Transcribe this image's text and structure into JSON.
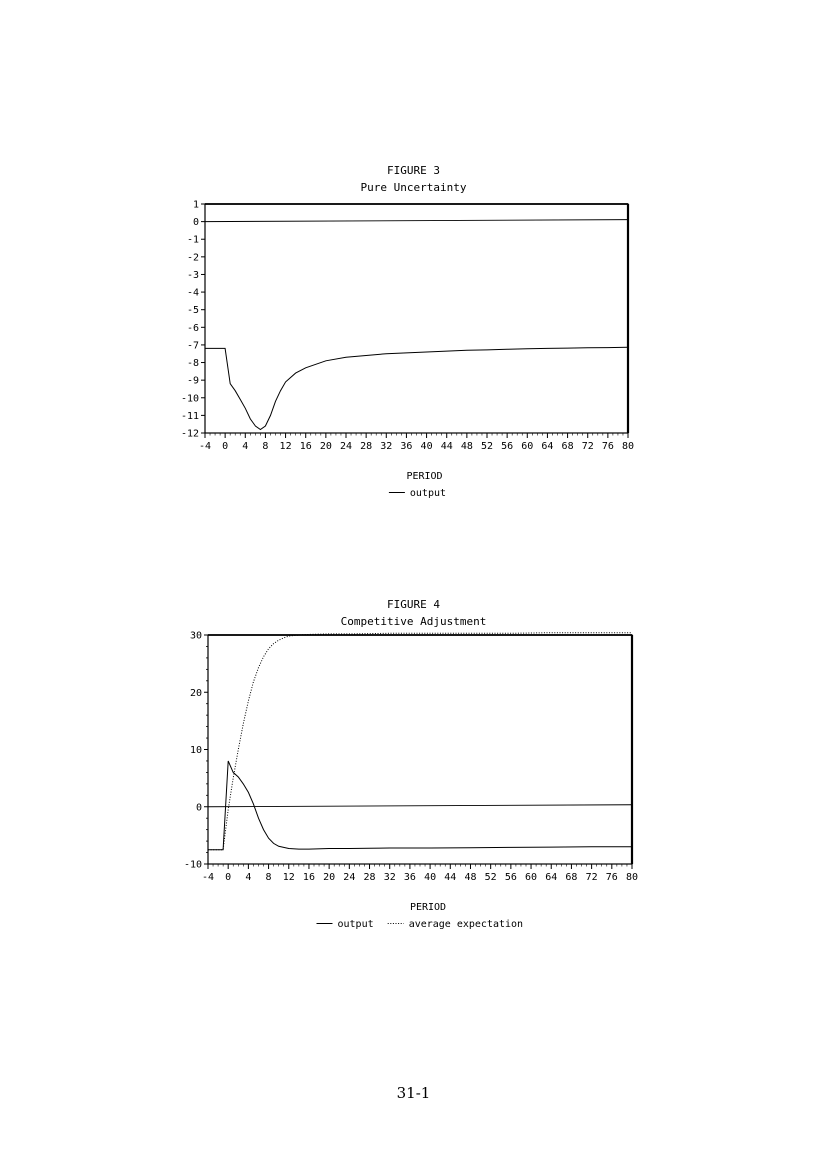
{
  "page": {
    "page_number": "31-1"
  },
  "chart_data": [
    {
      "type": "line",
      "figure_label": "FIGURE 3",
      "title": "Pure Uncertainty",
      "xlabel": "PERIOD",
      "ylabel": "",
      "xlim": [
        -4,
        80
      ],
      "ylim": [
        -12,
        1
      ],
      "x_ticks": [
        -4,
        0,
        4,
        8,
        12,
        16,
        20,
        24,
        28,
        32,
        36,
        40,
        44,
        48,
        52,
        56,
        60,
        64,
        68,
        72,
        76,
        80
      ],
      "y_ticks": [
        1,
        0,
        -1,
        -2,
        -3,
        -4,
        -5,
        -6,
        -7,
        -8,
        -9,
        -10,
        -11,
        -12
      ],
      "grid": false,
      "legend_position": "bottom-center",
      "reference_line": {
        "y": 0
      },
      "series": [
        {
          "name": "output",
          "style": "solid",
          "x": [
            -4,
            -3,
            -2,
            -1,
            0,
            1,
            2,
            3,
            4,
            5,
            6,
            7,
            8,
            9,
            10,
            11,
            12,
            14,
            16,
            18,
            20,
            24,
            28,
            32,
            36,
            40,
            44,
            48,
            52,
            56,
            60,
            64,
            68,
            72,
            76,
            80
          ],
          "y": [
            -7.2,
            -7.2,
            -7.2,
            -7.2,
            -7.2,
            -9.2,
            -9.6,
            -10.1,
            -10.6,
            -11.2,
            -11.6,
            -11.8,
            -11.6,
            -11.0,
            -10.2,
            -9.6,
            -9.1,
            -8.6,
            -8.3,
            -8.1,
            -7.9,
            -7.7,
            -7.6,
            -7.5,
            -7.45,
            -7.4,
            -7.35,
            -7.3,
            -7.28,
            -7.25,
            -7.22,
            -7.2,
            -7.18,
            -7.16,
            -7.15,
            -7.13
          ]
        }
      ]
    },
    {
      "type": "line",
      "figure_label": "FIGURE 4",
      "title": "Competitive Adjustment",
      "xlabel": "PERIOD",
      "ylabel": "",
      "xlim": [
        -4,
        80
      ],
      "ylim": [
        -10,
        30
      ],
      "x_ticks": [
        -4,
        0,
        4,
        8,
        12,
        16,
        20,
        24,
        28,
        32,
        36,
        40,
        44,
        48,
        52,
        56,
        60,
        64,
        68,
        72,
        76,
        80
      ],
      "y_ticks": [
        30,
        20,
        10,
        0,
        -10
      ],
      "grid": false,
      "legend_position": "bottom-center",
      "reference_line": {
        "y": 0
      },
      "series": [
        {
          "name": "output",
          "style": "solid",
          "x": [
            -4,
            -3,
            -2,
            -1,
            0,
            1,
            2,
            3,
            4,
            5,
            6,
            7,
            8,
            9,
            10,
            11,
            12,
            14,
            16,
            20,
            24,
            28,
            32,
            40,
            48,
            56,
            64,
            72,
            80
          ],
          "y": [
            -7.5,
            -7.5,
            -7.5,
            -7.5,
            8,
            6,
            5.2,
            4,
            2.5,
            0.5,
            -2,
            -4,
            -5.5,
            -6.4,
            -6.9,
            -7.1,
            -7.3,
            -7.4,
            -7.4,
            -7.3,
            -7.3,
            -7.25,
            -7.2,
            -7.2,
            -7.15,
            -7.1,
            -7.05,
            -7.0,
            -7.0
          ]
        },
        {
          "name": "average expectation",
          "style": "dotted",
          "x": [
            -4,
            -3,
            -2,
            -1,
            0,
            1,
            2,
            3,
            4,
            5,
            6,
            7,
            8,
            9,
            10,
            11,
            12,
            14,
            16,
            20,
            24,
            32,
            40,
            48,
            56,
            64,
            72,
            80
          ],
          "y": [
            -7.5,
            -7.5,
            -7.5,
            -7.5,
            -0.5,
            5,
            10,
            14.5,
            18.5,
            21.8,
            24.3,
            26.2,
            27.6,
            28.5,
            29.1,
            29.5,
            29.8,
            30,
            30.1,
            30.2,
            30.2,
            30.3,
            30.3,
            30.3,
            30.3,
            30.4,
            30.4,
            30.4
          ]
        }
      ]
    }
  ]
}
